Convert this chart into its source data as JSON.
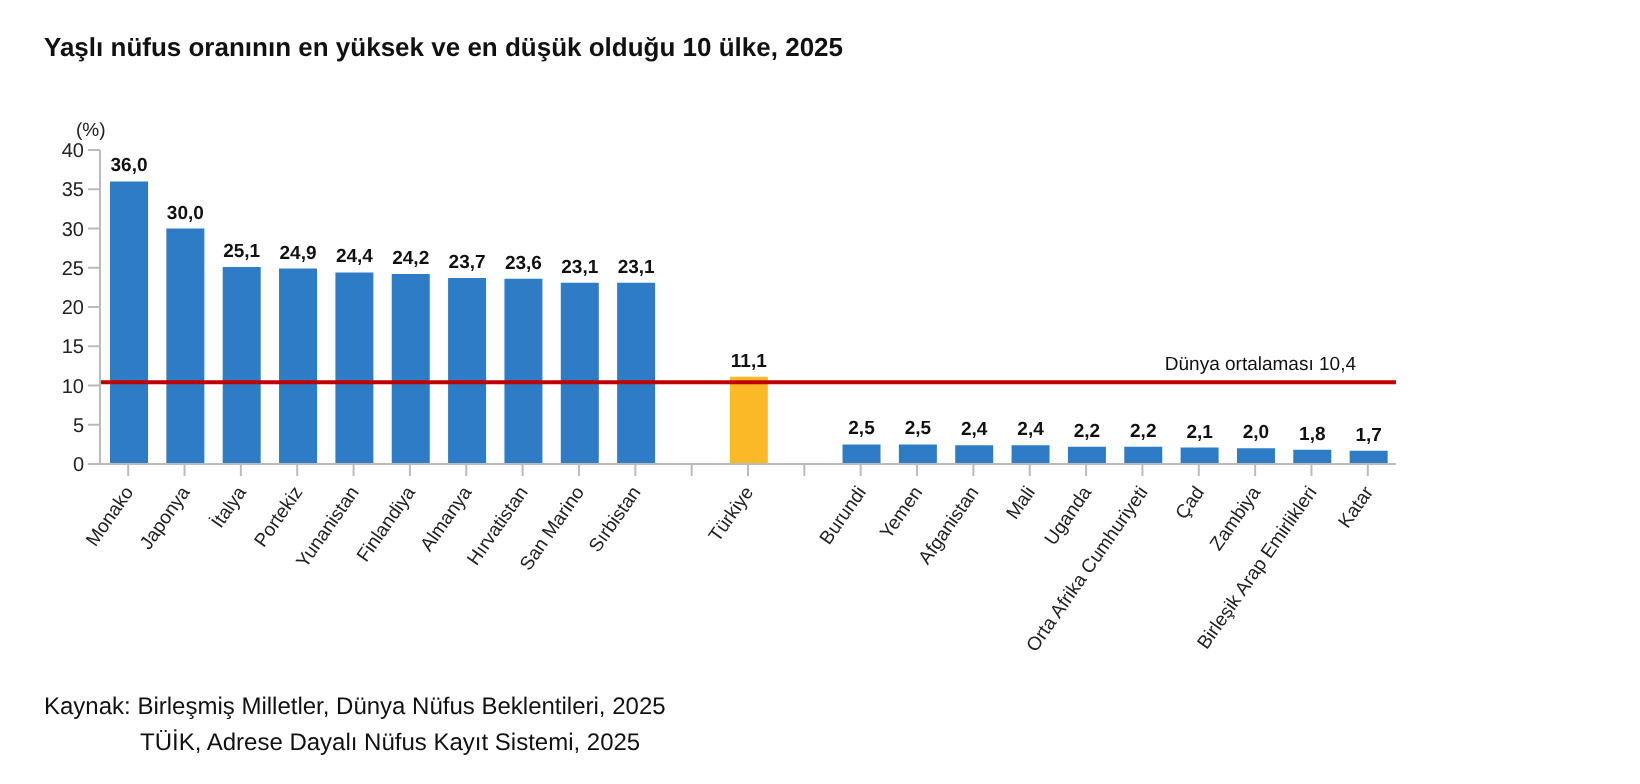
{
  "chart_data": {
    "type": "bar",
    "title": "Yaşlı nüfus oranının en yüksek ve en düşük olduğu 10 ülke, 2025",
    "ylabel": "(%)",
    "categories": [
      "Monako",
      "Japonya",
      "İtalya",
      "Portekiz",
      "Yunanistan",
      "Finlandiya",
      "Almanya",
      "Hırvatistan",
      "San Marino",
      "Sırbistan",
      null,
      "Türkiye",
      null,
      "Burundi",
      "Yemen",
      "Afganistan",
      "Mali",
      "Uganda",
      "Orta Afrika Cumhuriyeti",
      "Çad",
      "Zambiya",
      "Birleşik Arap Emirlikleri",
      "Katar"
    ],
    "values": [
      36.0,
      30.0,
      25.1,
      24.9,
      24.4,
      24.2,
      23.7,
      23.6,
      23.1,
      23.1,
      null,
      11.1,
      null,
      2.5,
      2.5,
      2.4,
      2.4,
      2.2,
      2.2,
      2.1,
      2.0,
      1.8,
      1.7
    ],
    "value_labels": [
      "36,0",
      "30,0",
      "25,1",
      "24,9",
      "24,4",
      "24,2",
      "23,7",
      "23,6",
      "23,1",
      "23,1",
      null,
      "11,1",
      null,
      "2,5",
      "2,5",
      "2,4",
      "2,4",
      "2,2",
      "2,2",
      "2,1",
      "2,0",
      "1,8",
      "1,7"
    ],
    "colors": [
      "#2e7cc6",
      "#2e7cc6",
      "#2e7cc6",
      "#2e7cc6",
      "#2e7cc6",
      "#2e7cc6",
      "#2e7cc6",
      "#2e7cc6",
      "#2e7cc6",
      "#2e7cc6",
      null,
      "#fbb827",
      null,
      "#2e7cc6",
      "#2e7cc6",
      "#2e7cc6",
      "#2e7cc6",
      "#2e7cc6",
      "#2e7cc6",
      "#2e7cc6",
      "#2e7cc6",
      "#2e7cc6",
      "#2e7cc6"
    ],
    "ylim": [
      0,
      40
    ],
    "yticks": [
      0,
      5,
      10,
      15,
      20,
      25,
      30,
      35,
      40
    ],
    "grid": false,
    "legend": false,
    "ref_lines": [
      {
        "axis": "y",
        "value": 10.4,
        "label": "Dünya ortalaması  10,4",
        "color": "#c00000"
      }
    ],
    "annotations": [
      "Kaynak: Birleşmiş Milletler, Dünya Nüfus Beklentileri, 2025",
      "TÜİK, Adrese Dayalı Nüfus Kayıt Sistemi, 2025"
    ]
  }
}
